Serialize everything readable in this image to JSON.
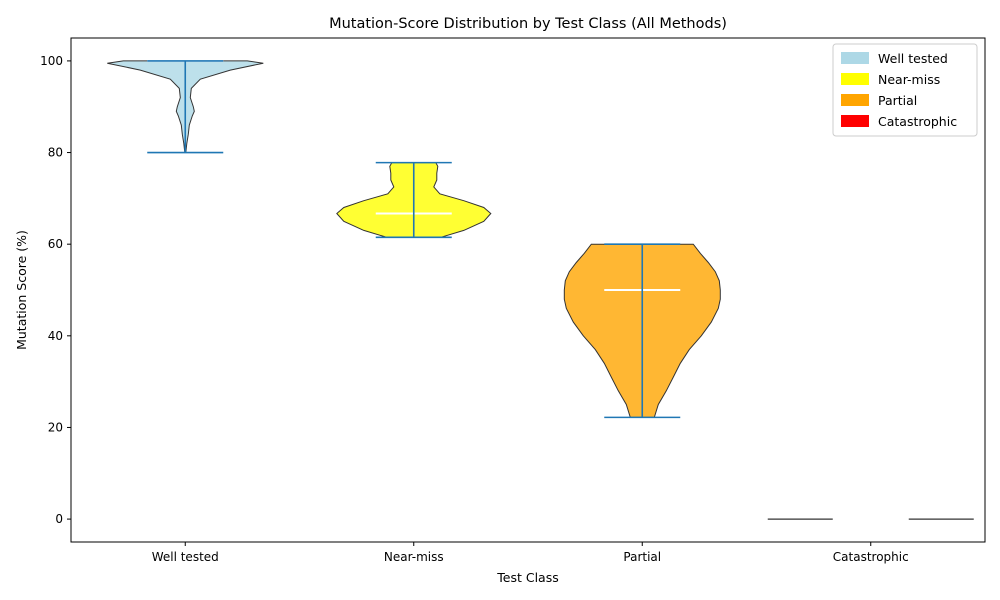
{
  "chart_data": {
    "type": "violin",
    "title": "Mutation-Score Distribution by Test Class (All Methods)",
    "xlabel": "Test Class",
    "ylabel": "Mutation Score (%)",
    "ylim": [
      -5,
      105
    ],
    "yticks": [
      0,
      20,
      40,
      60,
      80,
      100
    ],
    "categories": [
      "Well tested",
      "Near-miss",
      "Partial",
      "Catastrophic"
    ],
    "colors": [
      "#add8e6",
      "#ffff00",
      "#ffa500",
      "#ff0000"
    ],
    "grid": false,
    "legend_position": "top-right",
    "series": [
      {
        "name": "Well tested",
        "min": 80,
        "median": 100,
        "max": 100,
        "profile": [
          [
            80,
            0.5
          ],
          [
            82,
            1.5
          ],
          [
            84,
            3
          ],
          [
            86,
            4
          ],
          [
            88,
            7
          ],
          [
            89,
            9
          ],
          [
            90,
            8
          ],
          [
            92,
            5
          ],
          [
            94,
            6
          ],
          [
            96,
            15
          ],
          [
            98,
            45
          ],
          [
            99.5,
            78
          ],
          [
            100,
            62
          ]
        ]
      },
      {
        "name": "Near-miss",
        "min": 61.5,
        "median": 66.7,
        "max": 77.8,
        "profile": [
          [
            61.5,
            27
          ],
          [
            63,
            50
          ],
          [
            65,
            70
          ],
          [
            66.7,
            77
          ],
          [
            68,
            70
          ],
          [
            69.5,
            50
          ],
          [
            71,
            26
          ],
          [
            72.5,
            20
          ],
          [
            74,
            23
          ],
          [
            75.5,
            23
          ],
          [
            77,
            24
          ],
          [
            77.8,
            22
          ]
        ]
      },
      {
        "name": "Partial",
        "min": 22.2,
        "median": 50,
        "max": 60,
        "profile": [
          [
            22.2,
            12
          ],
          [
            25,
            16
          ],
          [
            28,
            24
          ],
          [
            31,
            31
          ],
          [
            34,
            38
          ],
          [
            37,
            47
          ],
          [
            40,
            59
          ],
          [
            43,
            69
          ],
          [
            46,
            76
          ],
          [
            48,
            78
          ],
          [
            50,
            78
          ],
          [
            52,
            77
          ],
          [
            54,
            73
          ],
          [
            56,
            66
          ],
          [
            58,
            58
          ],
          [
            60,
            51
          ]
        ]
      },
      {
        "name": "Catastrophic",
        "min": 0,
        "median": 0,
        "max": 0,
        "profile": []
      }
    ]
  }
}
